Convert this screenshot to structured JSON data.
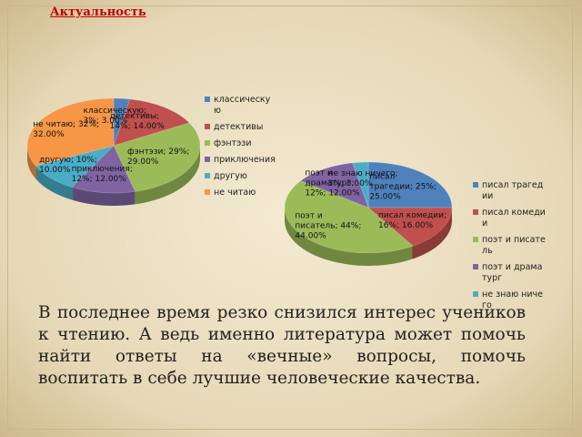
{
  "title": "Актуальность",
  "body": "В последнее время резко снизился интерес учеников к чтению. А ведь именно литература может помочь найти ответы на «вечные» вопросы, помочь воспитать в себе лучшие человеческие качества.",
  "chart_data": [
    {
      "type": "pie",
      "categories": [
        "классическую",
        "детективы",
        "фэнтэзи",
        "приключения",
        "другую",
        "не читаю"
      ],
      "values": [
        3,
        14,
        29,
        12,
        10,
        32
      ],
      "value_labels": [
        "классическую; 3%; 3.00%",
        "детективы; 14%; 14.00%",
        "фэнтэзи; 29%; 29.00%",
        "приключения; 12%; 12.00%",
        "другую; 10%; 10.00%",
        "не читаю; 32%; 32.00%"
      ],
      "colors": [
        "#4f81bd",
        "#c0504d",
        "#9bbb59",
        "#8064a2",
        "#4bacc6",
        "#f79646"
      ],
      "legend": "right"
    },
    {
      "type": "pie",
      "categories": [
        "писал трагедии",
        "писал комедии",
        "поэт и писатель",
        "поэт и драматург",
        "не знаю ничего"
      ],
      "values": [
        25,
        16,
        44,
        12,
        3
      ],
      "value_labels": [
        "писал трагедии; 25%; 25.00%",
        "писал комедии; 16%; 16.00%",
        "поэт и писатель; 44%; 44.00%",
        "поэт и драматург; 12%; 12.00%",
        "не знаю ничего; 3%; 3.00%"
      ],
      "colors": [
        "#4f81bd",
        "#c0504d",
        "#9bbb59",
        "#8064a2",
        "#4bacc6"
      ],
      "legend": "right"
    }
  ]
}
